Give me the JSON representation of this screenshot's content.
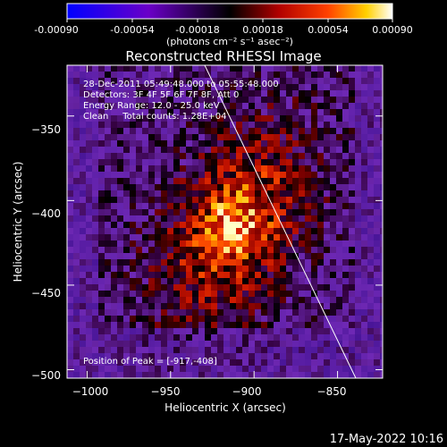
{
  "colorbar": {
    "ticks": [
      "-0.00090",
      "-0.00054",
      "-0.00018",
      "0.00018",
      "0.00054",
      "0.00090"
    ],
    "unit_label": "(photons cm⁻² s⁻¹ asec⁻²)"
  },
  "chart_data": {
    "type": "heatmap",
    "title": "Reconstructed RHESSI Image",
    "xlabel": "Heliocentric X (arcsec)",
    "ylabel": "Heliocentric Y (arcsec)",
    "xlim": [
      -1012,
      -823
    ],
    "ylim": [
      -505,
      -320
    ],
    "xticks": [
      -1000,
      -950,
      -900,
      -850
    ],
    "xtick_labels": [
      "−1000",
      "−950",
      "−900",
      "−850"
    ],
    "yticks": [
      -350,
      -400,
      -450,
      -500
    ],
    "ytick_labels": [
      "−350",
      "−400",
      "−450",
      "−500"
    ],
    "colorscale_range": [
      -0.0009,
      0.0009
    ],
    "peak": {
      "x": -917,
      "y": -408
    },
    "annotations": [
      "28-Dec-2011 05:49:48.000 to 05:55:48.000",
      "Detectors: 3F 4F 5F 6F 7F 8F, Att 0",
      "Energy Range: 12.0 - 25.0 keV",
      "Clean     Total counts: 1.28E+04"
    ],
    "peak_label": "Position of Peak = [-917,-408]"
  },
  "footer": {
    "date": "17-May-2022 10:16"
  }
}
